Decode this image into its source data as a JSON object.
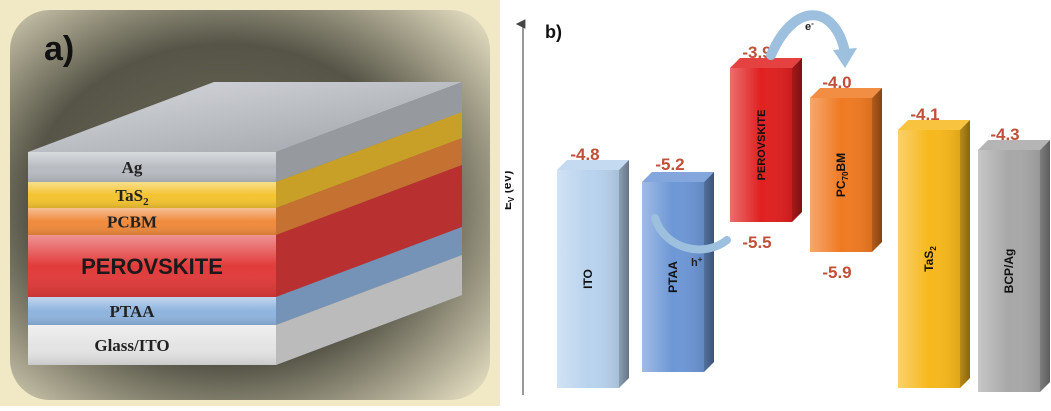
{
  "panel_a": {
    "label": "a)",
    "layers": [
      {
        "name": "Ag",
        "color": "#b8bcc2"
      },
      {
        "name": "TaS",
        "sub": "2",
        "color": "#f4c430"
      },
      {
        "name": "PCBM",
        "color": "#f08a3c"
      },
      {
        "name": "PEROVSKITE",
        "color": "#e23b3b"
      },
      {
        "name": "PTAA",
        "color": "#8fb4de"
      },
      {
        "name": "Glass/ITO",
        "color": "#e4e4e4"
      }
    ]
  },
  "panel_b": {
    "label": "b)",
    "axis_label": "E",
    "axis_label_sub": "V",
    "axis_label_suffix": " (eV)",
    "blocks": [
      {
        "name": "ITO",
        "top": "-4.8",
        "bottom": "",
        "color": "#b9d3ee"
      },
      {
        "name": "PTAA",
        "top": "-5.2",
        "bottom": "",
        "color": "#6d97d6"
      },
      {
        "name": "PEROVSKITE",
        "top": "-3.9",
        "bottom": "-5.5",
        "color": "#e02020"
      },
      {
        "name": "PC",
        "name_sub": "70",
        "name_suffix": "BM",
        "top": "-4.0",
        "bottom": "-5.9",
        "color": "#f07a22"
      },
      {
        "name": "TaS",
        "name_sub": "2",
        "top": "-4.1",
        "bottom": "",
        "color": "#f7b81c"
      },
      {
        "name": "BCP/Ag",
        "top": "-4.3",
        "bottom": "",
        "color": "#a8a8a8"
      }
    ],
    "electron_label": "e",
    "electron_sup": "-",
    "hole_label": "h",
    "hole_sup": "+",
    "value_color": "#c0503a"
  }
}
